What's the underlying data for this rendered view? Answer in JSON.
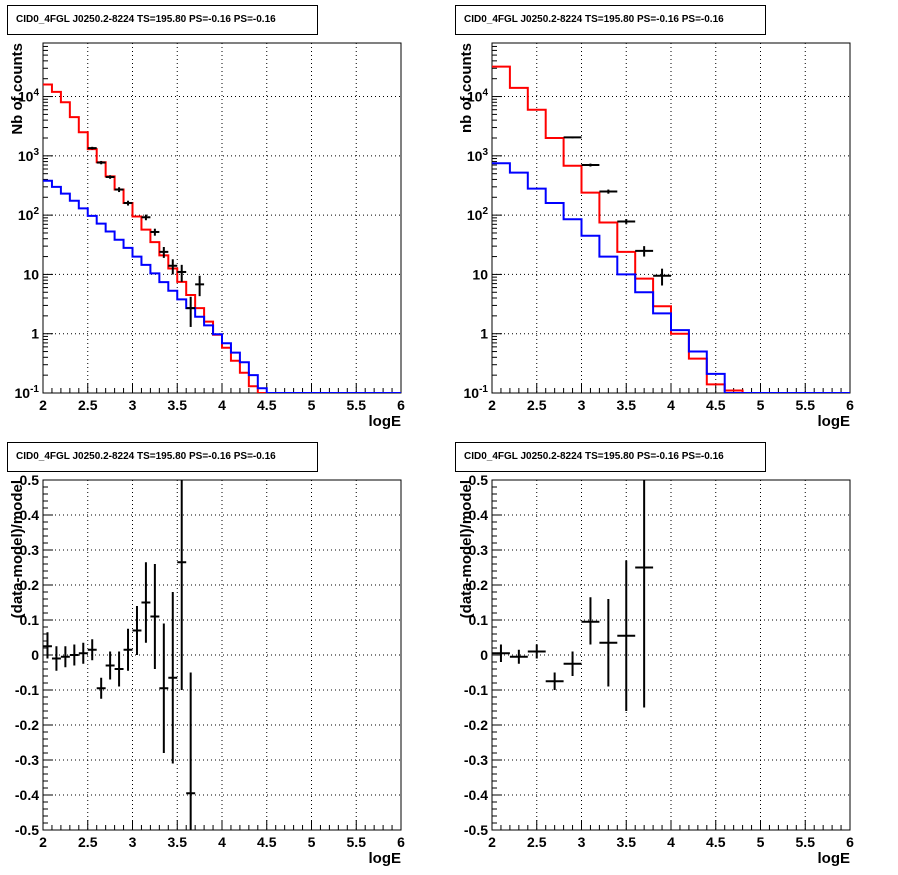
{
  "panel_title": "CID0_4FGL J0250.2-8224 TS=195.80 PS=-0.16 PS=-0.16",
  "colors": {
    "data": "#000000",
    "total_model": "#ff0000",
    "component_model": "#0000ff",
    "grid": "#000000"
  },
  "chart_data": [
    {
      "type": "line",
      "title": "CID0_4FGL J0250.2-8224 TS=195.80 PS=-0.16 PS=-0.16",
      "xlabel": "logE",
      "ylabel": "Nb of counts",
      "yscale": "log",
      "xlim": [
        2,
        6
      ],
      "ylim": [
        0.1,
        80000
      ],
      "grid": true,
      "xticks": [
        "2",
        "2.5",
        "3",
        "3.5",
        "4",
        "4.5",
        "5",
        "5.5",
        "6"
      ],
      "yticks": [
        "10^-1",
        "1",
        "10",
        "10^2",
        "10^3",
        "10^4"
      ],
      "step_edges": [
        2.0,
        2.1,
        2.2,
        2.3,
        2.4,
        2.5,
        2.6,
        2.7,
        2.8,
        2.9,
        3.0,
        3.1,
        3.2,
        3.3,
        3.4,
        3.5,
        3.6,
        3.7,
        3.8,
        3.9,
        4.0,
        4.1,
        4.2,
        4.3,
        4.4,
        4.5,
        4.6,
        4.7,
        4.8,
        4.9,
        5.0,
        5.1,
        5.2,
        5.3,
        5.4,
        5.5,
        5.6,
        5.7,
        5.8,
        5.9,
        6.0
      ],
      "series": [
        {
          "kind": "step",
          "color": "#ff0000",
          "values": [
            16000,
            12000,
            8000,
            4500,
            2500,
            1300,
            780,
            450,
            270,
            160,
            95,
            57,
            35,
            21,
            12.6,
            7.5,
            4.5,
            2.7,
            1.6,
            0.96,
            0.58,
            0.35,
            0.22,
            0.13,
            0.1,
            0.1,
            0.1,
            0.1,
            0.1,
            0.1,
            0.1,
            0.1,
            0.1,
            0.1,
            0.1,
            0.1,
            0.1,
            0.1,
            0.1,
            0.1
          ]
        },
        {
          "kind": "step",
          "color": "#0000ff",
          "values": [
            380,
            300,
            230,
            175,
            130,
            97,
            72,
            53,
            38.5,
            28,
            20,
            14.5,
            10.4,
            7.4,
            5.3,
            3.8,
            2.7,
            1.93,
            1.38,
            0.98,
            0.69,
            0.48,
            0.33,
            0.2,
            0.12,
            0.1,
            0.1,
            0.1,
            0.1,
            0.1,
            0.1,
            0.1,
            0.1,
            0.1,
            0.1,
            0.1,
            0.1,
            0.1,
            0.1,
            0.1
          ]
        },
        {
          "kind": "points",
          "color": "#000000",
          "points": [
            {
              "x": 2.55,
              "y": 1350,
              "ylo": 1280,
              "yhi": 1420,
              "xerr": 0.05
            },
            {
              "x": 2.65,
              "y": 770,
              "ylo": 720,
              "yhi": 820,
              "xerr": 0.05
            },
            {
              "x": 2.75,
              "y": 440,
              "ylo": 410,
              "yhi": 470,
              "xerr": 0.05
            },
            {
              "x": 2.85,
              "y": 270,
              "ylo": 245,
              "yhi": 295,
              "xerr": 0.05
            },
            {
              "x": 2.95,
              "y": 160,
              "ylo": 145,
              "yhi": 175,
              "xerr": 0.05
            },
            {
              "x": 3.15,
              "y": 92,
              "ylo": 82,
              "yhi": 102,
              "xerr": 0.05
            },
            {
              "x": 3.25,
              "y": 52,
              "ylo": 45,
              "yhi": 59,
              "xerr": 0.05
            },
            {
              "x": 3.35,
              "y": 24,
              "ylo": 19,
              "yhi": 29,
              "xerr": 0.05
            },
            {
              "x": 3.45,
              "y": 14,
              "ylo": 10,
              "yhi": 18,
              "xerr": 0.05
            },
            {
              "x": 3.55,
              "y": 11,
              "ylo": 7.5,
              "yhi": 14.5,
              "xerr": 0.05
            },
            {
              "x": 3.65,
              "y": 2.7,
              "ylo": 1.3,
              "yhi": 4.2,
              "xerr": 0.05
            },
            {
              "x": 3.75,
              "y": 6.8,
              "ylo": 4.3,
              "yhi": 9.5,
              "xerr": 0.05
            }
          ]
        }
      ]
    },
    {
      "type": "line",
      "title": "CID0_4FGL J0250.2-8224 TS=195.80 PS=-0.16 PS=-0.16",
      "xlabel": "logE",
      "ylabel": "nb of counts",
      "yscale": "log",
      "xlim": [
        2,
        6
      ],
      "ylim": [
        0.1,
        80000
      ],
      "grid": true,
      "xticks": [
        "2",
        "2.5",
        "3",
        "3.5",
        "4",
        "4.5",
        "5",
        "5.5",
        "6"
      ],
      "yticks": [
        "10^-1",
        "1",
        "10",
        "10^2",
        "10^3",
        "10^4"
      ],
      "step_edges": [
        2.0,
        2.2,
        2.4,
        2.6,
        2.8,
        3.0,
        3.2,
        3.4,
        3.6,
        3.8,
        4.0,
        4.2,
        4.4,
        4.6,
        4.8,
        5.0,
        5.2,
        5.4,
        5.6,
        5.8,
        6.0
      ],
      "series": [
        {
          "kind": "step",
          "color": "#ff0000",
          "values": [
            32000,
            14000,
            6000,
            2000,
            680,
            240,
            75,
            24,
            8.5,
            2.9,
            1.0,
            0.38,
            0.14,
            0.11,
            0.1,
            0.1,
            0.1,
            0.1,
            0.1,
            0.1
          ]
        },
        {
          "kind": "step",
          "color": "#0000ff",
          "values": [
            750,
            520,
            280,
            160,
            85,
            45,
            20,
            10,
            5.0,
            2.2,
            1.15,
            0.5,
            0.21,
            0.1,
            0.1,
            0.1,
            0.1,
            0.1,
            0.1,
            0.1
          ]
        },
        {
          "kind": "points",
          "color": "#000000",
          "points": [
            {
              "x": 2.9,
              "y": 2050,
              "ylo": 1980,
              "yhi": 2120,
              "xerr": 0.1
            },
            {
              "x": 3.1,
              "y": 700,
              "ylo": 660,
              "yhi": 740,
              "xerr": 0.1
            },
            {
              "x": 3.3,
              "y": 250,
              "ylo": 230,
              "yhi": 270,
              "xerr": 0.1
            },
            {
              "x": 3.5,
              "y": 78,
              "ylo": 70,
              "yhi": 86,
              "xerr": 0.1
            },
            {
              "x": 3.7,
              "y": 25,
              "ylo": 20,
              "yhi": 30,
              "xerr": 0.1
            },
            {
              "x": 3.9,
              "y": 9.5,
              "ylo": 6.5,
              "yhi": 12.5,
              "xerr": 0.1
            }
          ]
        }
      ]
    },
    {
      "type": "scatter",
      "title": "CID0_4FGL J0250.2-8224 TS=195.80 PS=-0.16 PS=-0.16",
      "xlabel": "logE",
      "ylabel": "(data-model)/model",
      "yscale": "linear",
      "xlim": [
        2,
        6
      ],
      "ylim": [
        -0.5,
        0.5
      ],
      "grid": true,
      "xticks": [
        "2",
        "2.5",
        "3",
        "3.5",
        "4",
        "4.5",
        "5",
        "5.5",
        "6"
      ],
      "yticks": [
        "-0.5",
        "-0.4",
        "-0.3",
        "-0.2",
        "-0.1",
        "0",
        "0.1",
        "0.2",
        "0.3",
        "0.4",
        "0.5"
      ],
      "series": [
        {
          "kind": "points",
          "color": "#000000",
          "points": [
            {
              "x": 2.05,
              "y": 0.025,
              "ylo": -0.01,
              "yhi": 0.065,
              "xerr": 0.05
            },
            {
              "x": 2.15,
              "y": -0.01,
              "ylo": -0.045,
              "yhi": 0.025,
              "xerr": 0.05
            },
            {
              "x": 2.25,
              "y": -0.005,
              "ylo": -0.035,
              "yhi": 0.025,
              "xerr": 0.05
            },
            {
              "x": 2.35,
              "y": 0.0,
              "ylo": -0.03,
              "yhi": 0.03,
              "xerr": 0.05
            },
            {
              "x": 2.45,
              "y": 0.005,
              "ylo": -0.025,
              "yhi": 0.035,
              "xerr": 0.05
            },
            {
              "x": 2.55,
              "y": 0.015,
              "ylo": -0.015,
              "yhi": 0.045,
              "xerr": 0.05
            },
            {
              "x": 2.65,
              "y": -0.095,
              "ylo": -0.125,
              "yhi": -0.065,
              "xerr": 0.05
            },
            {
              "x": 2.75,
              "y": -0.03,
              "ylo": -0.07,
              "yhi": 0.01,
              "xerr": 0.05
            },
            {
              "x": 2.85,
              "y": -0.04,
              "ylo": -0.09,
              "yhi": 0.01,
              "xerr": 0.05
            },
            {
              "x": 2.95,
              "y": 0.015,
              "ylo": -0.045,
              "yhi": 0.075,
              "xerr": 0.05
            },
            {
              "x": 3.05,
              "y": 0.07,
              "ylo": 0.0,
              "yhi": 0.14,
              "xerr": 0.05
            },
            {
              "x": 3.15,
              "y": 0.15,
              "ylo": 0.035,
              "yhi": 0.265,
              "xerr": 0.05
            },
            {
              "x": 3.25,
              "y": 0.11,
              "ylo": -0.04,
              "yhi": 0.26,
              "xerr": 0.05
            },
            {
              "x": 3.35,
              "y": -0.095,
              "ylo": -0.28,
              "yhi": 0.09,
              "xerr": 0.05
            },
            {
              "x": 3.45,
              "y": -0.065,
              "ylo": -0.31,
              "yhi": 0.18,
              "xerr": 0.05
            },
            {
              "x": 3.55,
              "y": 0.265,
              "ylo": -0.1,
              "yhi": 0.5,
              "xerr": 0.05
            },
            {
              "x": 3.65,
              "y": -0.395,
              "ylo": -0.5,
              "yhi": -0.05,
              "xerr": 0.05
            }
          ]
        }
      ]
    },
    {
      "type": "scatter",
      "title": "CID0_4FGL J0250.2-8224 TS=195.80 PS=-0.16 PS=-0.16",
      "xlabel": "logE",
      "ylabel": "(data-model)/model",
      "yscale": "linear",
      "xlim": [
        2,
        6
      ],
      "ylim": [
        -0.5,
        0.5
      ],
      "grid": true,
      "xticks": [
        "2",
        "2.5",
        "3",
        "3.5",
        "4",
        "4.5",
        "5",
        "5.5",
        "6"
      ],
      "yticks": [
        "-0.5",
        "-0.4",
        "-0.3",
        "-0.2",
        "-0.1",
        "0",
        "0.1",
        "0.2",
        "0.3",
        "0.4",
        "0.5"
      ],
      "series": [
        {
          "kind": "points",
          "color": "#000000",
          "points": [
            {
              "x": 2.1,
              "y": 0.005,
              "ylo": -0.02,
              "yhi": 0.03,
              "xerr": 0.1
            },
            {
              "x": 2.3,
              "y": -0.005,
              "ylo": -0.025,
              "yhi": 0.015,
              "xerr": 0.1
            },
            {
              "x": 2.5,
              "y": 0.01,
              "ylo": -0.01,
              "yhi": 0.03,
              "xerr": 0.1
            },
            {
              "x": 2.7,
              "y": -0.075,
              "ylo": -0.1,
              "yhi": -0.05,
              "xerr": 0.1
            },
            {
              "x": 2.9,
              "y": -0.025,
              "ylo": -0.06,
              "yhi": 0.01,
              "xerr": 0.1
            },
            {
              "x": 3.1,
              "y": 0.095,
              "ylo": 0.03,
              "yhi": 0.165,
              "xerr": 0.1
            },
            {
              "x": 3.3,
              "y": 0.035,
              "ylo": -0.09,
              "yhi": 0.16,
              "xerr": 0.1
            },
            {
              "x": 3.5,
              "y": 0.055,
              "ylo": -0.16,
              "yhi": 0.27,
              "xerr": 0.1
            },
            {
              "x": 3.7,
              "y": 0.25,
              "ylo": -0.15,
              "yhi": 0.5,
              "xerr": 0.1
            }
          ]
        }
      ]
    }
  ]
}
